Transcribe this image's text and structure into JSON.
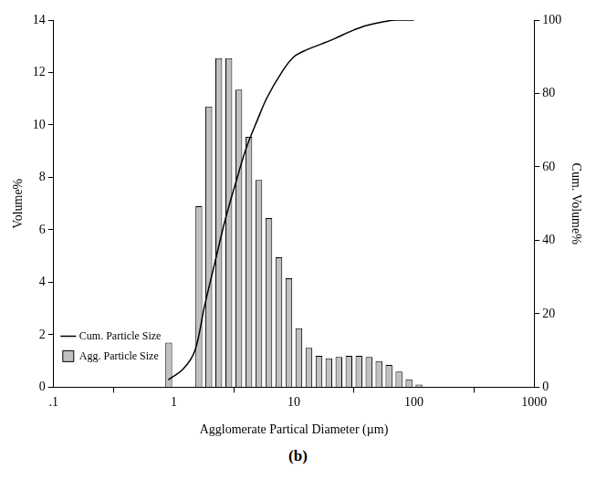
{
  "chart_data": {
    "type": "bar",
    "caption": "(b)",
    "x_label": "Agglomerate Partical Diameter (µm)",
    "y_label": "Volume%",
    "y2_label": "Cum. Volume%",
    "log": "x",
    "grid": false,
    "legend": "top-right",
    "xlim": [
      0.1,
      1000
    ],
    "xticks": [
      {
        "value": 0.1,
        "label": ".1"
      },
      1,
      10,
      100,
      1000
    ],
    "ylim": [
      0,
      14
    ],
    "yticks": [
      0,
      2,
      4,
      6,
      8,
      10,
      12,
      14
    ],
    "y2lim": [
      0,
      100
    ],
    "y2ticks": [
      0,
      20,
      40,
      60,
      80,
      100
    ],
    "series": [
      {
        "name": "Agg. Particle Size",
        "type": "bar",
        "color": "#c0c0c0",
        "bins": [
          0.825,
          1.0,
          1.21,
          1.47,
          1.78,
          2.15,
          2.61,
          3.16,
          3.83,
          4.64,
          5.62,
          6.81,
          8.25,
          10,
          12.1,
          14.7,
          17.8,
          21.5,
          26.1,
          31.6,
          38.3,
          46.4,
          56.2,
          68.1,
          82.5,
          100,
          121
        ],
        "values": [
          1.7,
          0,
          0,
          6.9,
          10.7,
          12.55,
          12.55,
          11.35,
          9.55,
          7.9,
          6.45,
          4.95,
          4.15,
          2.25,
          1.5,
          1.2,
          1.1,
          1.15,
          1.2,
          1.2,
          1.15,
          1.0,
          0.85,
          0.6,
          0.3,
          0.1
        ]
      },
      {
        "name": "Cum. Particle Size",
        "type": "line",
        "color": "#000000",
        "axis": "y2",
        "line_style": "solid",
        "x": [
          0.9,
          1.2,
          1.5,
          1.8,
          2.2,
          2.7,
          3.3,
          4,
          5,
          6,
          8,
          10,
          13,
          17,
          22,
          30,
          40,
          55,
          70,
          100
        ],
        "values": [
          2,
          5,
          10,
          22,
          34,
          46,
          56,
          65,
          73,
          79,
          86,
          90,
          92,
          93.5,
          95,
          97,
          98.5,
          99.5,
          100,
          100
        ]
      }
    ]
  }
}
